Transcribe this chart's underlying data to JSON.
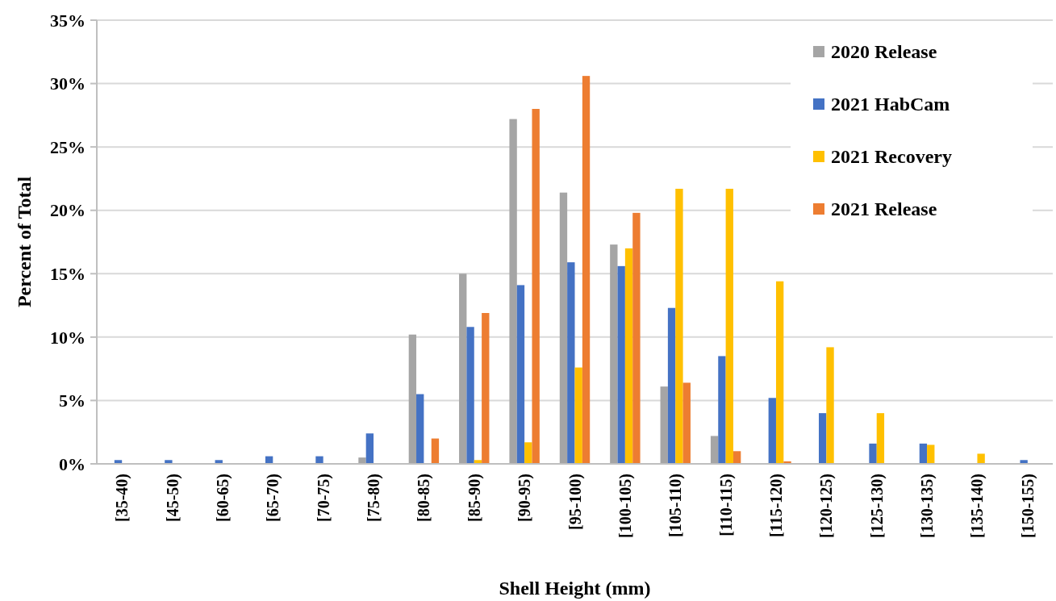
{
  "chart_data": {
    "type": "bar",
    "xlabel": "Shell Height (mm)",
    "ylabel": "Percent of Total",
    "categories": [
      "[35-40)",
      "[45-50)",
      "[60-65)",
      "[65-70)",
      "[70-75)",
      "[75-80)",
      "[80-85)",
      "[85-90)",
      "[90-95)",
      "[95-100)",
      "[100-105)",
      "[105-110)",
      "[110-115)",
      "[115-120)",
      "[120-125)",
      "[125-130)",
      "[130-135)",
      "[135-140)",
      "[150-155)"
    ],
    "series": [
      {
        "name": "2020 Release",
        "color": "#a5a5a5",
        "values": [
          0,
          0,
          0,
          0,
          0,
          0.5,
          10.2,
          15.0,
          27.2,
          21.4,
          17.3,
          6.1,
          2.2,
          0,
          0,
          0,
          0,
          0,
          0
        ]
      },
      {
        "name": "2021 HabCam",
        "color": "#4472c4",
        "values": [
          0.3,
          0.3,
          0.3,
          0.6,
          0.6,
          2.4,
          5.5,
          10.8,
          14.1,
          15.9,
          15.6,
          12.3,
          8.5,
          5.2,
          4.0,
          1.6,
          1.6,
          0,
          0.3
        ]
      },
      {
        "name": "2021 Recovery",
        "color": "#ffc000",
        "values": [
          0,
          0,
          0,
          0,
          0,
          0,
          0,
          0.3,
          1.7,
          7.6,
          17.0,
          21.7,
          21.7,
          14.4,
          9.2,
          4.0,
          1.5,
          0.8,
          0
        ]
      },
      {
        "name": "2021 Release",
        "color": "#ed7d31",
        "values": [
          0,
          0,
          0,
          0,
          0,
          0,
          2.0,
          11.9,
          28.0,
          30.6,
          19.8,
          6.4,
          1.0,
          0.2,
          0,
          0,
          0,
          0,
          0
        ]
      }
    ],
    "ylim": [
      0,
      35
    ],
    "yticks": [
      {
        "value": 0,
        "label": "0%"
      },
      {
        "value": 5,
        "label": "5%"
      },
      {
        "value": 10,
        "label": "10%"
      },
      {
        "value": 15,
        "label": "15%"
      },
      {
        "value": 20,
        "label": "20%"
      },
      {
        "value": 25,
        "label": "25%"
      },
      {
        "value": 30,
        "label": "30%"
      },
      {
        "value": 35,
        "label": "35%"
      }
    ],
    "grid": "y",
    "legend": "top right"
  }
}
